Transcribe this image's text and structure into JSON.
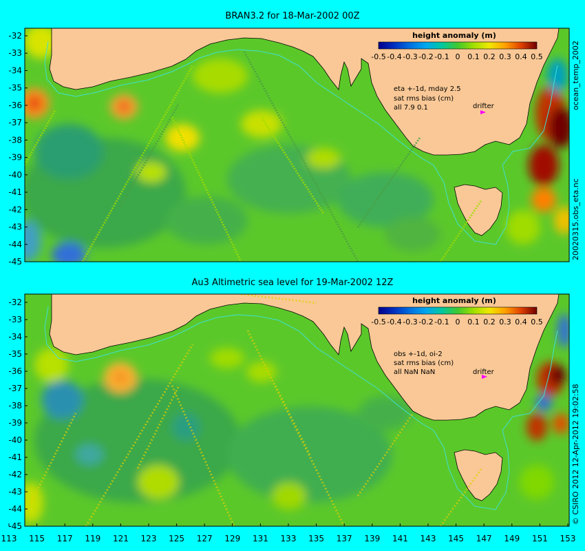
{
  "panels": [
    {
      "title": "BRAN3.2 for 18-Mar-2002 00Z",
      "legend_title": "height anomaly (m)",
      "annotation_lines": [
        "eta +-1d, mday 2.5",
        "sat rms bias (cm)",
        "all 7.9 0.1"
      ],
      "drifter_label": "drifter",
      "right_label_top": "ocean_temp_2002",
      "right_label_bottom": "20020315.obs_eta.nc"
    },
    {
      "title": "Au3 Altimetric sea level  for 19-Mar-2002 12Z",
      "legend_title": "height anomaly (m)",
      "annotation_lines": [
        "obs +-1d, oi-2",
        "sat rms bias (cm)",
        "all NaN NaN"
      ],
      "drifter_label": "drifter",
      "right_label": "© CSIRO  2012   12-Apr-2012 19:02:58"
    }
  ],
  "lat_ticks": [
    "-32",
    "-33",
    "-34",
    "-35",
    "-36",
    "-37",
    "-38",
    "-39",
    "-40",
    "-41",
    "-42",
    "-43",
    "-44",
    "-45"
  ],
  "lon_ticks": [
    "113",
    "115",
    "117",
    "119",
    "121",
    "123",
    "125",
    "127",
    "129",
    "131",
    "133",
    "135",
    "137",
    "139",
    "141",
    "143",
    "145",
    "147",
    "149",
    "151",
    "153"
  ],
  "colorbar": {
    "tick_labels": [
      "-0.5",
      "-0.4",
      "-0.3",
      "-0.2",
      "-0.1",
      "0",
      "0.1",
      "0.2",
      "0.3",
      "0.4",
      "0.5"
    ],
    "colors": [
      "#00008b",
      "#0030c0",
      "#0070e0",
      "#00a0f0",
      "#00c8c8",
      "#20c060",
      "#60d020",
      "#a0e000",
      "#e0e000",
      "#ffc000",
      "#ff8000",
      "#e04000",
      "#a01000",
      "#700000"
    ]
  },
  "colors": {
    "land": "#f9c896",
    "ocean_base": "#5bc82a",
    "frame": "#00ffff",
    "isobath": "#40e0d0",
    "drifter": "#ff00ff"
  }
}
